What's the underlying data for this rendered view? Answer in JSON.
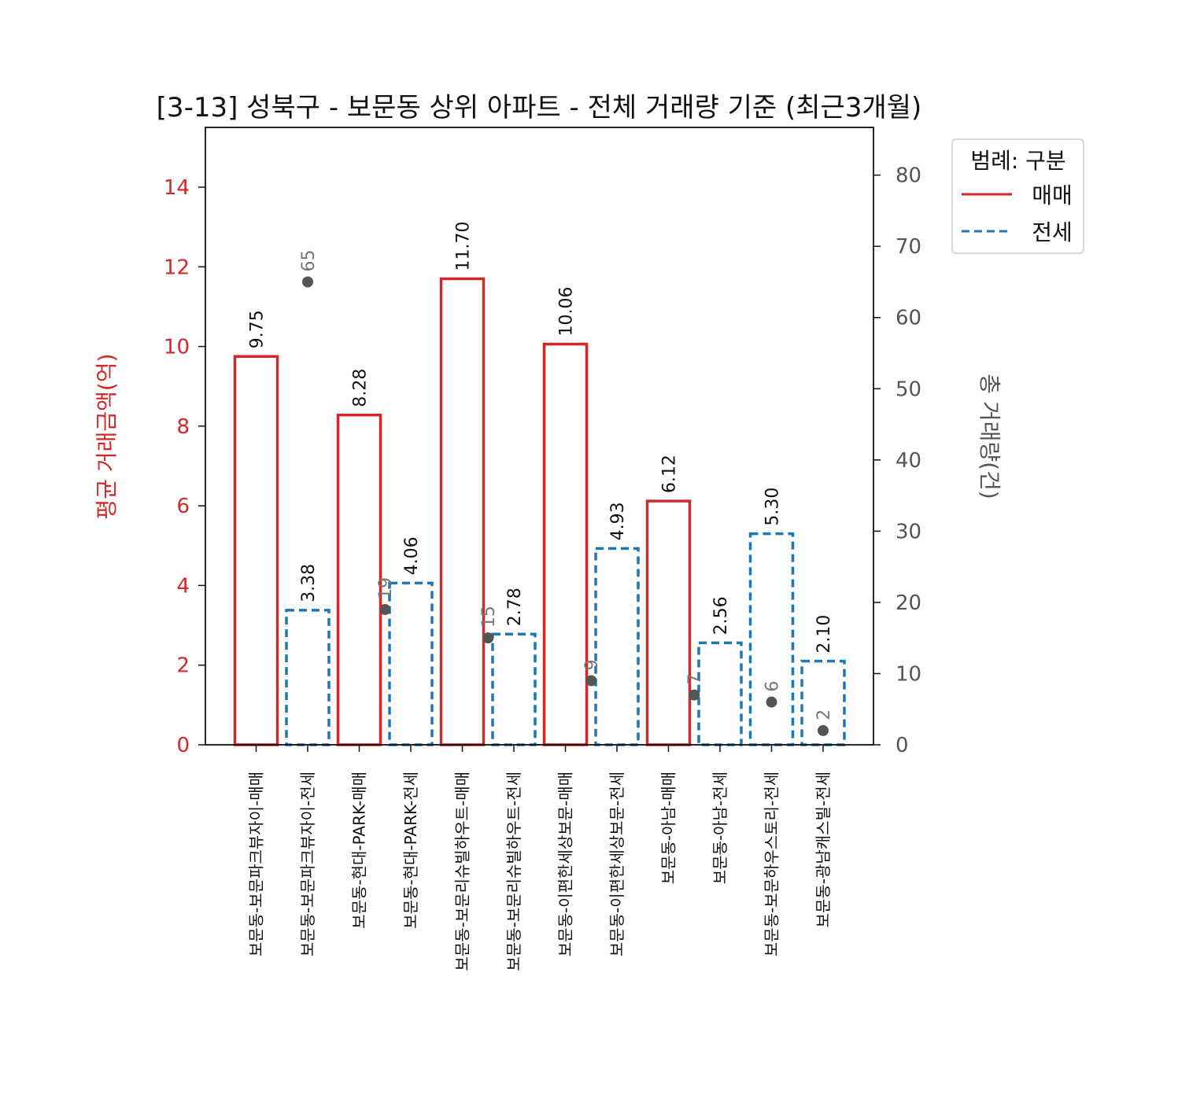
{
  "chart_data": {
    "type": "bar",
    "title": "[3-13] 성북구 - 보문동 상위 아파트 - 전체 거래량 기준 (최근3개월)",
    "ylabel_left": "평균 거래금액(억)",
    "ylabel_right": "총 거래량(건)",
    "ylim_left": [
      0,
      15.5
    ],
    "ylim_right": [
      0,
      86.7
    ],
    "yticks_left": [
      0,
      2,
      4,
      6,
      8,
      10,
      12,
      14
    ],
    "yticks_right": [
      0,
      10,
      20,
      30,
      40,
      50,
      60,
      70,
      80
    ],
    "grid": false,
    "legend": {
      "title": "범례: 구분",
      "placement": "outside-top-right",
      "entries": [
        {
          "label": "매매",
          "color": "#d62728",
          "style": "solid"
        },
        {
          "label": "전세",
          "color": "#1f77b4",
          "style": "dashed"
        }
      ]
    },
    "colors": {
      "매매": "#d62728",
      "전세": "#1f77b4",
      "count_marker": "#555555",
      "left_axis": "#d62728",
      "right_axis": "#555555"
    },
    "categories": [
      "보문동-보문파크뷰자이-매매",
      "보문동-보문파크뷰자이-전세",
      "보문동-현대-PARK-매매",
      "보문동-현대-PARK-전세",
      "보문동-보문리슈빌하우트-매매",
      "보문동-보문리슈빌하우트-전세",
      "보문동-이편한세상보문-매매",
      "보문동-이편한세상보문-전세",
      "보문동-아남-매매",
      "보문동-아남-전세",
      "보문동-보문하우스토리-전세",
      "보문동-광남캐스빌-전세"
    ],
    "series": [
      {
        "name": "평균 거래금액",
        "axis": "left",
        "values": [
          9.75,
          3.38,
          8.28,
          4.06,
          11.7,
          2.78,
          10.06,
          4.93,
          6.12,
          2.56,
          5.3,
          2.1
        ],
        "labels": [
          "9.75",
          "3.38",
          "8.28",
          "4.06",
          "11.70",
          "2.78",
          "10.06",
          "4.93",
          "6.12",
          "2.56",
          "5.30",
          "2.10"
        ],
        "kind": [
          "매매",
          "전세",
          "매매",
          "전세",
          "매매",
          "전세",
          "매매",
          "전세",
          "매매",
          "전세",
          "전세",
          "전세"
        ]
      },
      {
        "name": "총 거래량",
        "axis": "right",
        "counts": [
          65,
          19,
          15,
          9,
          7,
          6,
          2
        ],
        "count_labels": [
          "65",
          "19",
          "15",
          "9",
          "7",
          "6",
          "2"
        ],
        "count_positions": [
          1,
          2.5,
          4.5,
          6.5,
          8.5,
          10,
          11
        ]
      }
    ]
  }
}
